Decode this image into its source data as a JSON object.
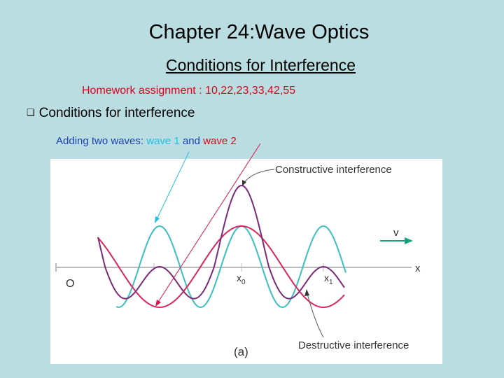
{
  "title": "Chapter 24:Wave Optics",
  "subtitle": "Conditions for Interference",
  "homework": "Homework assignment : 10,22,23,33,42,55",
  "bullet": {
    "icon": "hollow-square-bullet",
    "text": "Conditions for interference"
  },
  "adding": {
    "prefix": "Adding two waves: ",
    "wave1": "wave 1",
    "and": " and ",
    "wave2": "wave 2"
  },
  "figure": {
    "constructive": "Constructive interference",
    "destructive": "Destructive interference",
    "origin": "O",
    "x_axis": "x",
    "x0": "x",
    "x0_sub": "0",
    "x1": "x",
    "x1_sub": "1",
    "velocity": "v",
    "caption": "(a)",
    "colors": {
      "wave1": "#3bbfc0",
      "wave2": "#d8265f",
      "sum": "#7a2a78",
      "velocity_arrow": "#1aa37a"
    }
  },
  "colors": {
    "background": "#b9dde0",
    "homework": "#e0001a",
    "adding": "#1a3fb4",
    "wave1_label": "#1ec0e8",
    "wave2_label": "#e0001a"
  }
}
